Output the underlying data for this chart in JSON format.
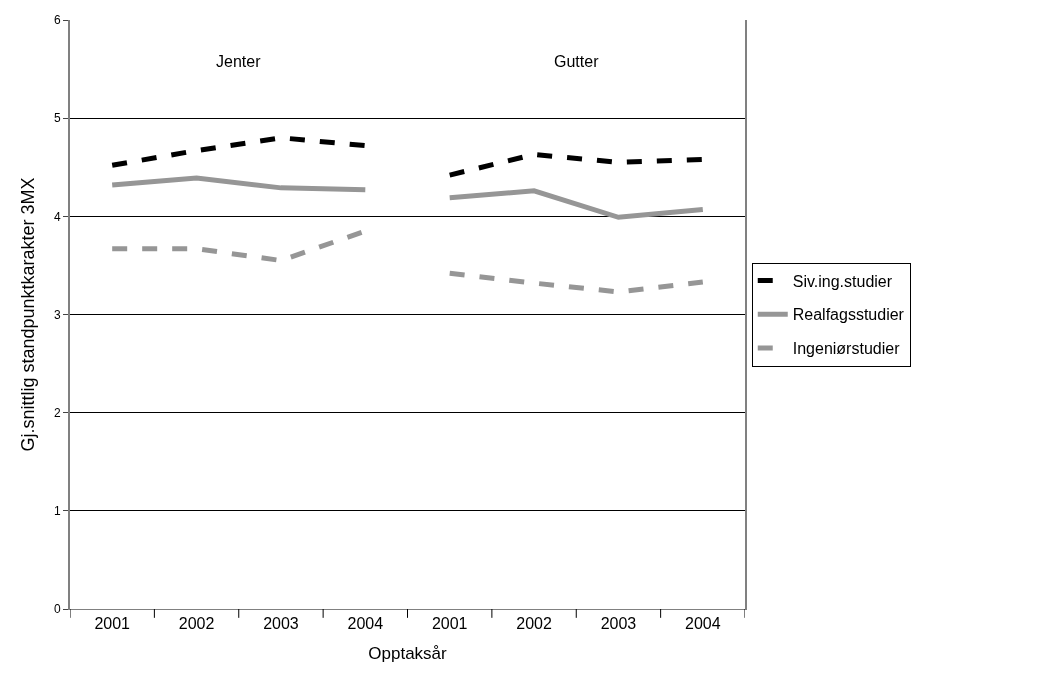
{
  "chart_data": {
    "type": "line",
    "xlabel": "Opptaksår",
    "ylabel": "Gj.snittlig standpunktkarakter 3MX",
    "categories": [
      "2001",
      "2002",
      "2003",
      "2004",
      "2001",
      "2002",
      "2003",
      "2004"
    ],
    "series": [
      {
        "name": "Siv.ing.studier",
        "color": "#000000",
        "line_style": "dashed",
        "values": [
          4.52,
          4.67,
          4.8,
          4.72,
          4.42,
          4.63,
          4.55,
          4.58
        ]
      },
      {
        "name": "Realfagsstudier",
        "color": "#969696",
        "line_style": "solid",
        "values": [
          4.32,
          4.39,
          4.29,
          4.27,
          4.19,
          4.26,
          3.99,
          4.07
        ]
      },
      {
        "name": "Ingeniørstudier",
        "color": "#969696",
        "line_style": "dashed",
        "values": [
          3.67,
          3.67,
          3.55,
          3.85,
          3.42,
          3.32,
          3.23,
          3.33
        ]
      }
    ],
    "annotations": [
      "Jenter",
      "Gutter"
    ],
    "ylim": [
      0,
      6
    ],
    "yticks": [
      0,
      1,
      2,
      3,
      4,
      5,
      6
    ],
    "grid": "y",
    "legend": "right",
    "marker": "none"
  }
}
